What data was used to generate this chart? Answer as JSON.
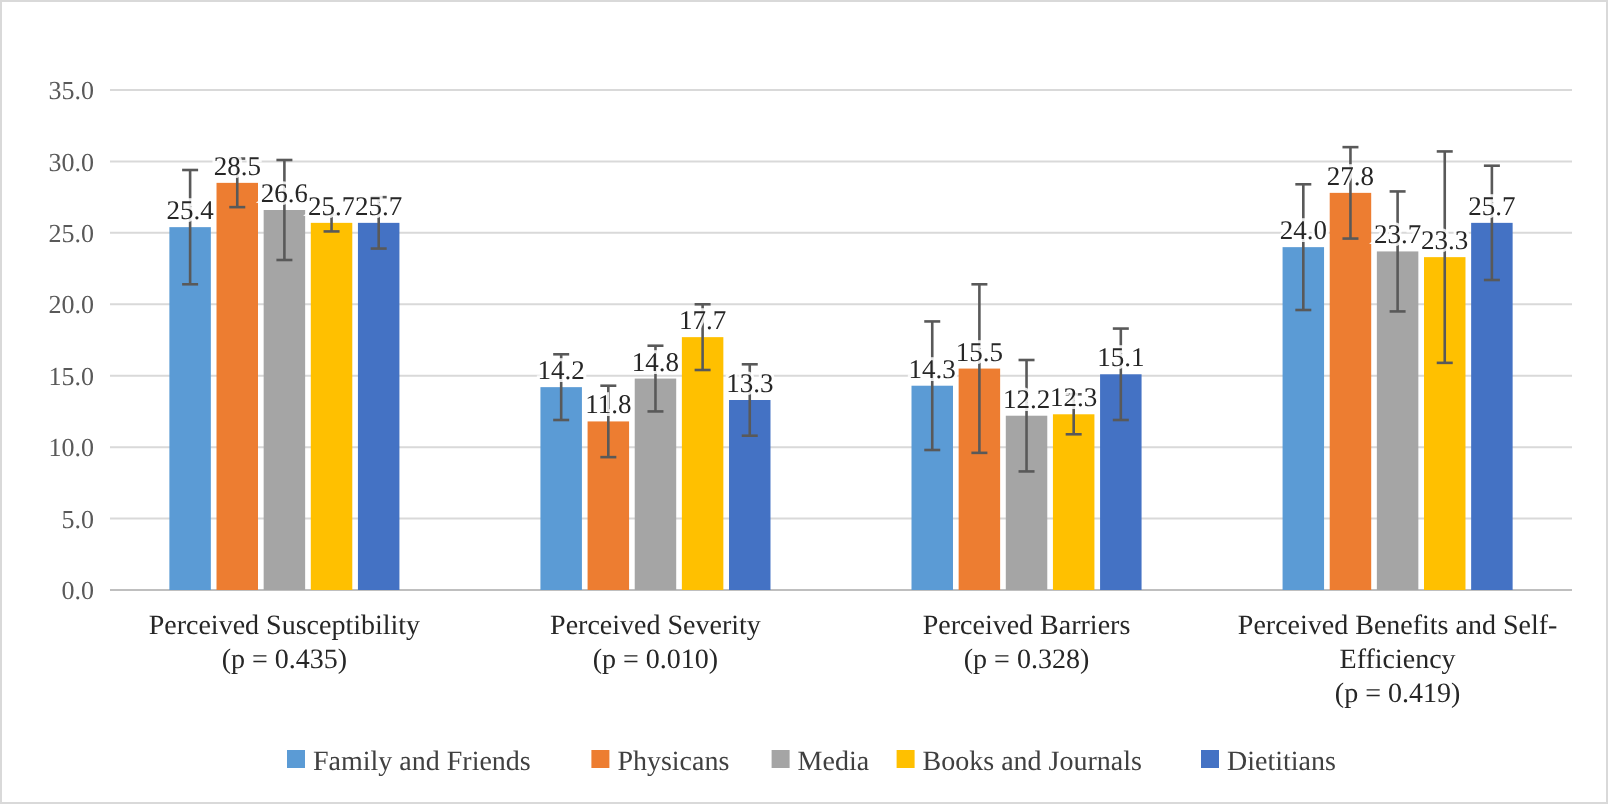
{
  "chart_data": {
    "type": "bar",
    "categories": [
      "Perceived Susceptibility\n(p = 0.435)",
      "Perceived Severity\n(p = 0.010)",
      "Perceived Barriers\n(p = 0.328)",
      "Perceived Benefits and Self-Efficiency\n(p = 0.419)"
    ],
    "series": [
      {
        "name": "Family and Friends",
        "color": "#5b9bd5",
        "values": [
          25.4,
          14.2,
          14.3,
          24.0
        ],
        "value_labels": [
          "25.4",
          "14.2",
          "14.3",
          "24.0"
        ],
        "errors": [
          4.0,
          2.3,
          4.5,
          4.4
        ]
      },
      {
        "name": "Physicans",
        "color": "#ed7d31",
        "values": [
          28.5,
          11.8,
          15.5,
          27.8
        ],
        "value_labels": [
          "28.5",
          "11.8",
          "15.5",
          "27.8"
        ],
        "errors": [
          1.7,
          2.5,
          5.9,
          3.2
        ]
      },
      {
        "name": "Media",
        "color": "#a5a5a5",
        "values": [
          26.6,
          14.8,
          12.2,
          23.7
        ],
        "value_labels": [
          "26.6",
          "14.8",
          "12.2",
          "23.7"
        ],
        "errors": [
          3.5,
          2.3,
          3.9,
          4.2
        ]
      },
      {
        "name": "Books and Journals",
        "color": "#ffc000",
        "values": [
          25.7,
          17.7,
          12.3,
          23.3
        ],
        "value_labels": [
          "25.7",
          "17.7",
          "12.3",
          "23.3"
        ],
        "errors": [
          0.6,
          2.3,
          1.4,
          7.4
        ]
      },
      {
        "name": "Dietitians",
        "color": "#4472c4",
        "values": [
          25.7,
          13.3,
          15.1,
          25.7
        ],
        "value_labels": [
          "25.7",
          "13.3",
          "15.1",
          "25.7"
        ],
        "errors": [
          1.8,
          2.5,
          3.2,
          4.0
        ]
      }
    ],
    "ylim": [
      0,
      35
    ],
    "yticks": [
      {
        "value": 0,
        "label": "0.0"
      },
      {
        "value": 5,
        "label": "5.0"
      },
      {
        "value": 10,
        "label": "10.0"
      },
      {
        "value": 15,
        "label": "15.0"
      },
      {
        "value": 20,
        "label": "20.0"
      },
      {
        "value": 25,
        "label": "25.0"
      },
      {
        "value": 30,
        "label": "30.0"
      },
      {
        "value": 35,
        "label": "35.0"
      }
    ],
    "grid": "y",
    "legend": "bottom"
  }
}
